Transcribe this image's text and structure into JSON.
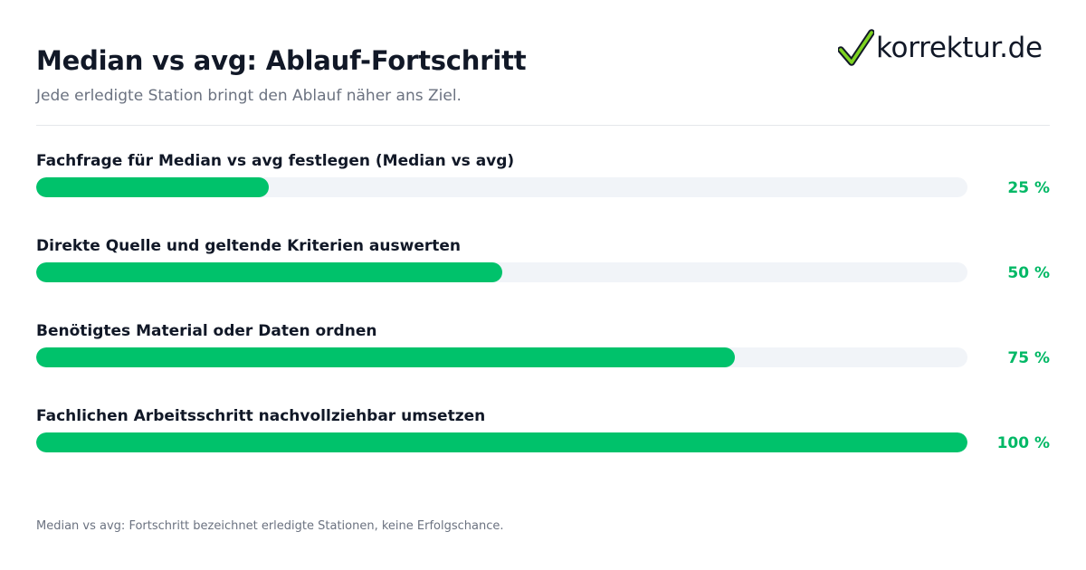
{
  "title": "Median vs avg: Ablauf-Fortschritt",
  "subtitle": "Jede erledigte Station bringt den Ablauf näher ans Ziel.",
  "logo": {
    "text": "korrektur.de",
    "icon": "checkmark-icon",
    "check_color": "#7ed321"
  },
  "footnote": "Median vs avg: Fortschritt bezeichnet erledigte Stationen, keine Erfolgschance.",
  "colors": {
    "fill": "#00c26b",
    "track": "#f1f4f8",
    "percent_text": "#00b865"
  },
  "chart_data": {
    "type": "bar",
    "orientation": "horizontal",
    "categories": [
      "Fachfrage für Median vs avg festlegen (Median vs avg)",
      "Direkte Quelle und geltende Kriterien auswerten",
      "Benötigtes Material oder Daten ordnen",
      "Fachlichen Arbeitsschritt nachvollziehbar umsetzen"
    ],
    "values": [
      25,
      50,
      75,
      100
    ],
    "value_labels": [
      "25 %",
      "50 %",
      "75 %",
      "100 %"
    ],
    "xlim": [
      0,
      100
    ],
    "grid": false,
    "legend": "none"
  }
}
